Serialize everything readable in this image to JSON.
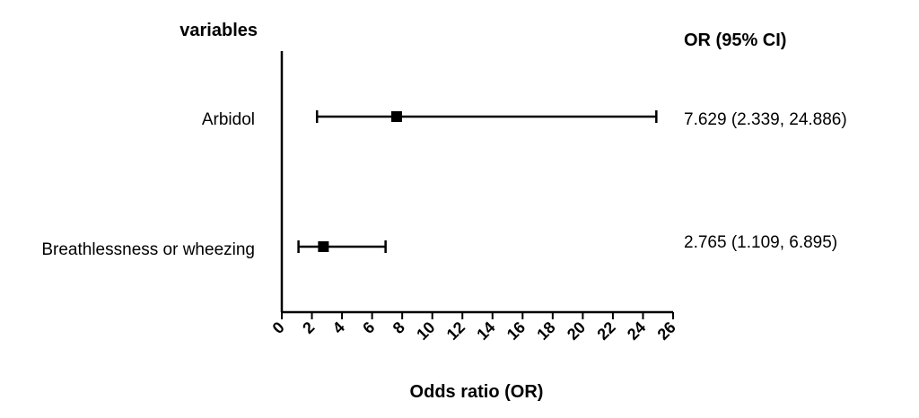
{
  "chart_data": {
    "type": "forest",
    "variables_header": "variables",
    "or_header": "OR (95% CI)",
    "xlabel": "Odds ratio (OR)",
    "xlim": [
      0,
      26
    ],
    "xticks": [
      0,
      2,
      4,
      6,
      8,
      10,
      12,
      14,
      16,
      18,
      20,
      22,
      24,
      26
    ],
    "rows": [
      {
        "label": "Arbidol",
        "or": 7.629,
        "lower": 2.339,
        "upper": 24.886,
        "text": "7.629 (2.339, 24.886)"
      },
      {
        "label": "Breathlessness or wheezing",
        "or": 2.765,
        "lower": 1.109,
        "upper": 6.895,
        "text": "2.765 (1.109, 6.895)"
      }
    ],
    "marker_color": "#000000",
    "grid": false
  }
}
